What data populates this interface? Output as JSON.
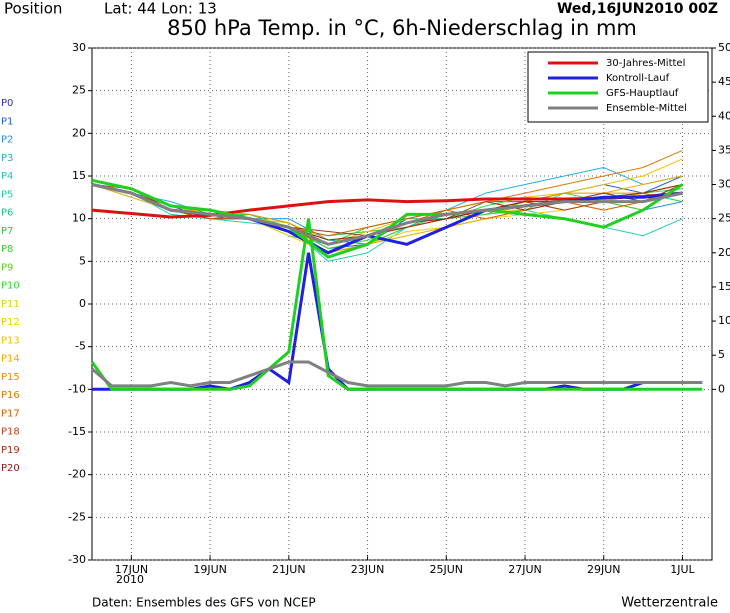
{
  "header": {
    "position": "Position",
    "coords": "Lat: 44  Lon: 13",
    "date": "Wed,16JUN2010 00Z"
  },
  "footer": {
    "source": "Daten: Ensembles des GFS von NCEP",
    "brand": "Wetterzentrale"
  },
  "chart_data": {
    "type": "line",
    "title": "850 hPa Temp. in °C, 6h-Niederschlag in mm",
    "x_sublabel": "2010",
    "xlim": [
      16,
      31.75
    ],
    "xticks": [
      {
        "value": 17,
        "label": "17JUN"
      },
      {
        "value": 19,
        "label": "19JUN"
      },
      {
        "value": 21,
        "label": "21JUN"
      },
      {
        "value": 23,
        "label": "23JUN"
      },
      {
        "value": 25,
        "label": "25JUN"
      },
      {
        "value": 27,
        "label": "27JUN"
      },
      {
        "value": 29,
        "label": "29JUN"
      },
      {
        "value": 31,
        "label": "1JUL"
      }
    ],
    "ylim": [
      -30,
      30
    ],
    "yticks": [
      -30,
      -25,
      -20,
      -15,
      -10,
      -5,
      0,
      5,
      10,
      15,
      20,
      25,
      30
    ],
    "y2lim": [
      -25,
      50
    ],
    "y2ticks": [
      0,
      5,
      10,
      15,
      20,
      25,
      30,
      35,
      40,
      45,
      50
    ],
    "grid": true,
    "x": [
      16,
      17,
      18,
      19,
      20,
      21,
      22,
      23,
      24,
      25,
      26,
      27,
      28,
      29,
      30,
      31
    ],
    "precip_x": [
      16,
      16.5,
      17,
      17.5,
      18,
      18.5,
      19,
      19.5,
      20,
      20.5,
      21,
      21.5,
      22,
      22.5,
      23,
      23.5,
      24,
      24.5,
      25,
      25.5,
      26,
      26.5,
      27,
      27.5,
      28,
      28.5,
      29,
      29.5,
      30,
      30.5,
      31,
      31.5
    ],
    "series": [
      {
        "name": "P0",
        "color": "#3030c0",
        "values": [
          14,
          13,
          11,
          10.5,
          10,
          8.5,
          6,
          8,
          7,
          9,
          11,
          11.5,
          12,
          12.5,
          12.5,
          13
        ]
      },
      {
        "name": "P1",
        "color": "#2060d0",
        "values": [
          14,
          13.5,
          11.5,
          10,
          10.5,
          9,
          6.5,
          7,
          10,
          11,
          12,
          12,
          13,
          14,
          13,
          15
        ]
      },
      {
        "name": "P2",
        "color": "#1e8ff0",
        "values": [
          14,
          12.5,
          11,
          10,
          10,
          10,
          7.5,
          7,
          9,
          10,
          11,
          12,
          11,
          12,
          11,
          12
        ]
      },
      {
        "name": "P3",
        "color": "#20b0e0",
        "values": [
          14,
          13,
          12,
          10.5,
          10,
          8,
          7,
          9,
          10,
          11,
          13,
          14,
          15,
          16,
          14,
          15
        ]
      },
      {
        "name": "P4",
        "color": "#20c8c8",
        "values": [
          14,
          13,
          11,
          11,
          10,
          9,
          6,
          8,
          9.5,
          10,
          10.5,
          11,
          12,
          13,
          12,
          14
        ]
      },
      {
        "name": "P5",
        "color": "#20d0b0",
        "values": [
          14,
          13,
          10.5,
          10,
          9.5,
          9,
          5,
          6,
          9,
          11,
          12,
          11,
          10,
          9,
          8,
          10
        ]
      },
      {
        "name": "P6",
        "color": "#20c080",
        "values": [
          14,
          13,
          11,
          10.5,
          10,
          9.5,
          7,
          8,
          10,
          10,
          11,
          12,
          12,
          13,
          12,
          13
        ]
      },
      {
        "name": "P7",
        "color": "#30c850",
        "values": [
          14,
          13.5,
          11,
          10.5,
          10,
          9,
          8,
          8.5,
          9,
          10.5,
          11,
          11,
          12,
          12,
          13,
          12
        ]
      },
      {
        "name": "P8",
        "color": "#40d030",
        "values": [
          14,
          13,
          11.5,
          11,
          10,
          8.5,
          6,
          7,
          9,
          10,
          10.5,
          12,
          11,
          12,
          12,
          13
        ]
      },
      {
        "name": "P9",
        "color": "#60d020",
        "values": [
          14,
          13,
          11,
          10,
          10,
          9,
          7,
          9,
          10,
          11,
          12,
          11,
          13,
          12,
          11,
          14
        ]
      },
      {
        "name": "P10",
        "color": "#30e030",
        "values": [
          14,
          13,
          11,
          10.5,
          10.5,
          9,
          6.5,
          7.5,
          9.5,
          10,
          11.5,
          12.5,
          12,
          12.5,
          13,
          13.5
        ]
      },
      {
        "name": "P11",
        "color": "#d8d800",
        "values": [
          14,
          13,
          11.5,
          10.5,
          10,
          9.5,
          7.5,
          8,
          9,
          10,
          11,
          11,
          12,
          11,
          12,
          13
        ]
      },
      {
        "name": "P12",
        "color": "#f0d000",
        "values": [
          14,
          13,
          11,
          10,
          10,
          8,
          6,
          7,
          8.5,
          9,
          10,
          10.5,
          11,
          12,
          13,
          14
        ]
      },
      {
        "name": "P13",
        "color": "#f0c000",
        "values": [
          14,
          12.5,
          11,
          10.5,
          10,
          9,
          7,
          8.5,
          10,
          11,
          12,
          12.5,
          13,
          14,
          15,
          17
        ]
      },
      {
        "name": "P14",
        "color": "#f0a800",
        "values": [
          14,
          13,
          11,
          10.5,
          10,
          9,
          6,
          7,
          8,
          9,
          10,
          11,
          12,
          13,
          14,
          15
        ]
      },
      {
        "name": "P15",
        "color": "#e89000",
        "values": [
          14,
          13,
          11,
          11,
          10.5,
          9.5,
          7,
          8,
          9,
          10,
          11,
          12,
          13,
          13,
          13,
          14
        ]
      },
      {
        "name": "P16",
        "color": "#e07800",
        "values": [
          14,
          13,
          11,
          10,
          10,
          8.5,
          7,
          8,
          9.5,
          11,
          12,
          13,
          14,
          15,
          16,
          18
        ]
      },
      {
        "name": "P17",
        "color": "#d86000",
        "values": [
          14,
          13.5,
          11,
          10.5,
          10,
          9,
          8,
          9,
          10,
          11,
          10,
          11,
          12,
          11,
          12,
          13
        ]
      },
      {
        "name": "P18",
        "color": "#c04020",
        "values": [
          14,
          13,
          11,
          10,
          10,
          9,
          7,
          8,
          9,
          10,
          11,
          12,
          11,
          12,
          12,
          13
        ]
      },
      {
        "name": "P19",
        "color": "#a83020",
        "values": [
          14,
          13,
          11.5,
          11,
          10,
          9,
          8.5,
          8,
          9,
          10,
          12,
          11,
          12,
          13,
          12,
          14
        ]
      },
      {
        "name": "P20",
        "color": "#902020",
        "values": [
          14,
          13,
          11,
          10.5,
          10,
          9,
          7.5,
          8,
          9.5,
          10,
          11,
          12,
          12,
          12.5,
          13,
          14
        ]
      },
      {
        "name": "30-Jahres-Mittel",
        "color": "#e01010",
        "line_width": 3,
        "values": [
          11,
          10.6,
          10.2,
          10.4,
          11,
          11.5,
          12,
          12.2,
          12,
          12.1,
          12.3,
          12.3,
          12.3,
          12.4,
          12.6,
          13
        ]
      },
      {
        "name": "Kontroll-Lauf",
        "color": "#2020e0",
        "line_width": 3,
        "values": [
          14,
          13,
          11,
          10.5,
          10,
          8.5,
          6,
          8,
          7,
          9,
          11,
          11.5,
          12,
          12.5,
          12.5,
          13
        ],
        "precip": [
          0,
          0,
          0,
          0,
          0,
          0,
          0.5,
          0,
          1,
          3,
          1,
          20,
          3,
          0,
          0,
          0,
          0,
          0,
          0,
          0,
          0,
          0,
          0,
          0,
          0.5,
          0,
          0,
          0,
          1,
          1,
          1,
          1
        ]
      },
      {
        "name": "GFS-Hauptlauf",
        "color": "#20d020",
        "line_width": 3,
        "values": [
          14.5,
          13.5,
          11.5,
          11,
          10,
          9,
          5.5,
          7,
          10.5,
          10.5,
          11,
          10.5,
          10,
          9,
          11,
          14
        ],
        "precip": [
          4,
          0,
          0,
          0,
          0,
          0,
          0,
          0,
          0.5,
          3,
          5.5,
          25,
          2,
          0,
          0,
          0,
          0,
          0,
          0,
          0,
          0,
          0,
          0,
          0,
          0,
          0,
          0,
          0,
          0,
          0,
          0,
          0
        ]
      },
      {
        "name": "Ensemble-Mittel",
        "color": "#808080",
        "line_width": 3,
        "values": [
          14,
          13,
          11,
          10.5,
          10,
          9,
          7,
          8,
          9.5,
          10.5,
          11,
          11.5,
          12,
          12,
          12,
          13
        ],
        "precip": [
          3,
          0.5,
          0.5,
          0.5,
          1,
          0.5,
          1,
          1,
          2,
          3,
          4,
          4,
          2.5,
          1,
          0.5,
          0.5,
          0.5,
          0.5,
          0.5,
          1,
          1,
          0.5,
          1,
          1,
          1,
          1,
          1,
          1,
          1,
          1,
          1,
          1
        ]
      }
    ]
  }
}
